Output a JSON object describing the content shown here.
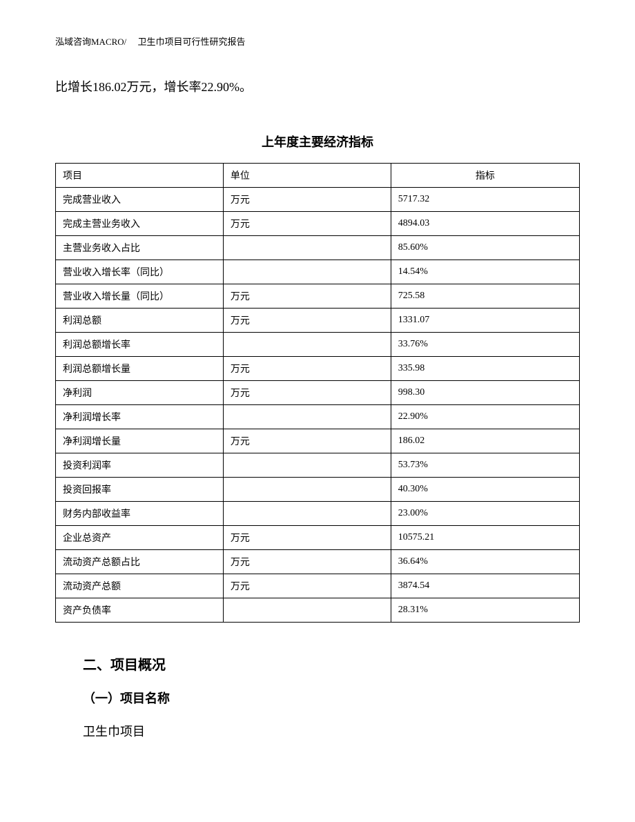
{
  "header": {
    "text": "泓域咨询MACRO/　 卫生巾项目可行性研究报告"
  },
  "body_text": "比增长186.02万元，增长率22.90%。",
  "table": {
    "title": "上年度主要经济指标",
    "columns": [
      "项目",
      "单位",
      "指标"
    ],
    "rows": [
      [
        "完成营业收入",
        "万元",
        "5717.32"
      ],
      [
        "完成主营业务收入",
        "万元",
        "4894.03"
      ],
      [
        "主营业务收入占比",
        "",
        "85.60%"
      ],
      [
        "营业收入增长率（同比）",
        "",
        "14.54%"
      ],
      [
        "营业收入增长量（同比）",
        "万元",
        "725.58"
      ],
      [
        "利润总额",
        "万元",
        "1331.07"
      ],
      [
        "利润总额增长率",
        "",
        "33.76%"
      ],
      [
        "利润总额增长量",
        "万元",
        "335.98"
      ],
      [
        "净利润",
        "万元",
        "998.30"
      ],
      [
        "净利润增长率",
        "",
        "22.90%"
      ],
      [
        "净利润增长量",
        "万元",
        "186.02"
      ],
      [
        "投资利润率",
        "",
        "53.73%"
      ],
      [
        "投资回报率",
        "",
        "40.30%"
      ],
      [
        "财务内部收益率",
        "",
        "23.00%"
      ],
      [
        "企业总资产",
        "万元",
        "10575.21"
      ],
      [
        "流动资产总额占比",
        "万元",
        "36.64%"
      ],
      [
        "流动资产总额",
        "万元",
        "3874.54"
      ],
      [
        "资产负债率",
        "",
        "28.31%"
      ]
    ]
  },
  "sections": {
    "heading_2": "二、项目概况",
    "sub_1": "（一）项目名称",
    "sub_1_body": "卫生巾项目"
  }
}
